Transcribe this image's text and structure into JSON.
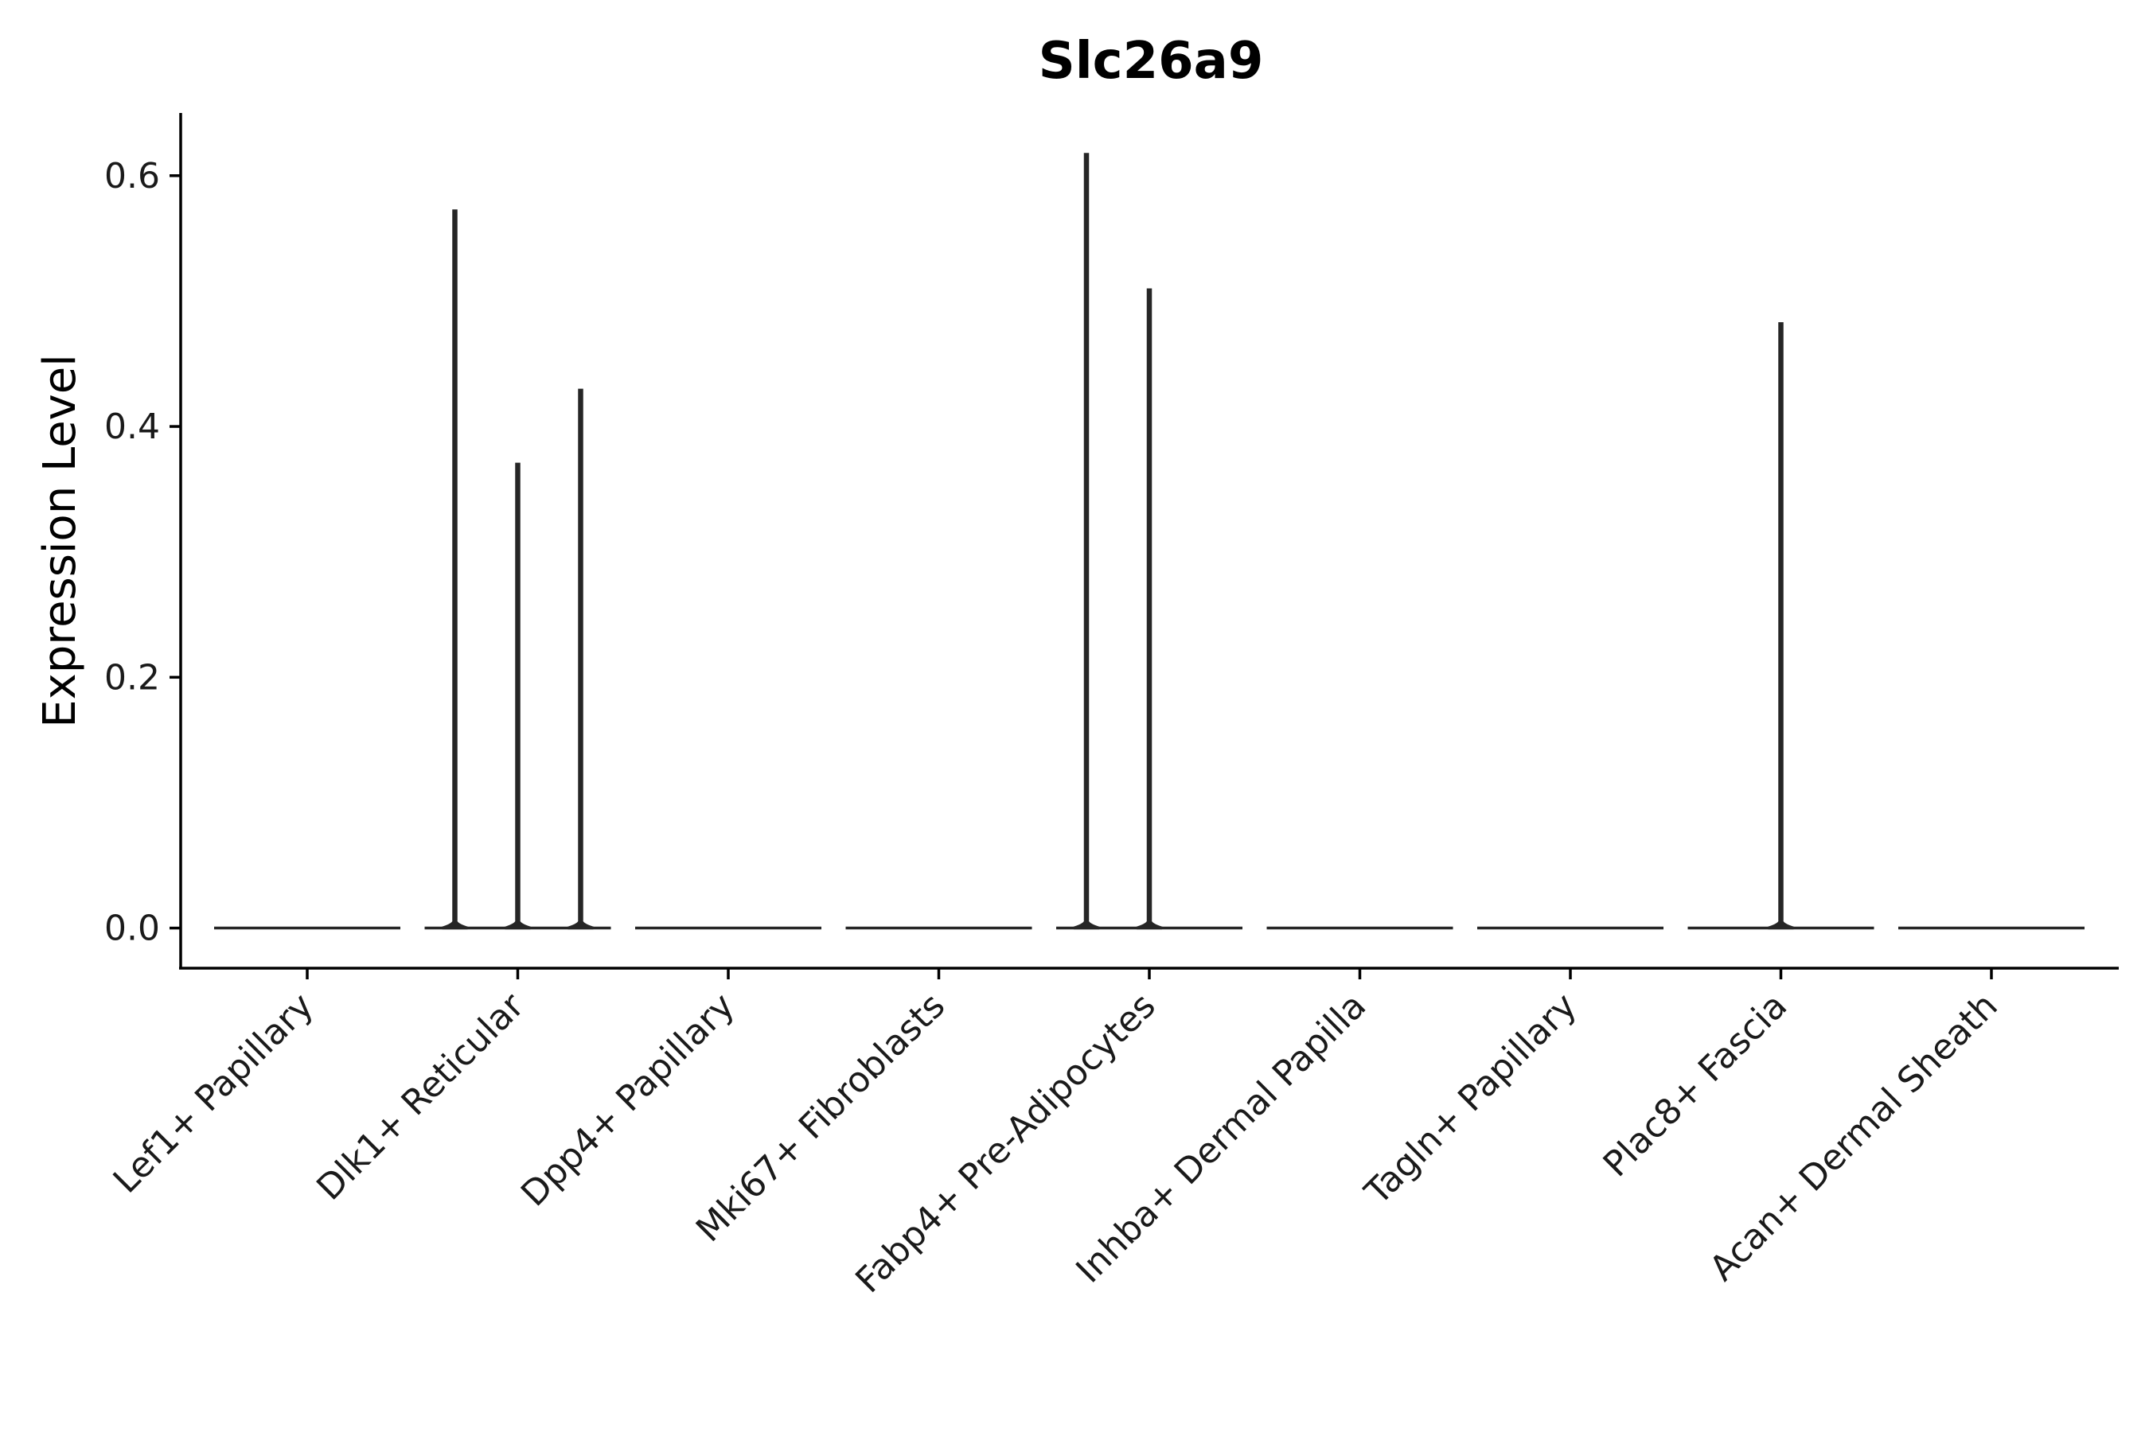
{
  "chart_data": {
    "type": "violin",
    "title": "Slc26a9",
    "xlabel": "",
    "ylabel": "Expression Level",
    "ylim": [
      -0.032,
      0.65
    ],
    "yticks": [
      0.0,
      0.2,
      0.4,
      0.6
    ],
    "ytick_labels": [
      "0.0",
      "0.2",
      "0.4",
      "0.6"
    ],
    "grid": false,
    "legend": "none",
    "color": "#262626",
    "categories": [
      "Lef1+ Papillary",
      "Dlk1+ Reticular",
      "Dpp4+ Papillary",
      "Mki67+ Fibroblasts",
      "Fabp4+ Pre-Adipocytes",
      "Inhba+ Dermal Papilla",
      "Tagln+ Papillary",
      "Plac8+ Fascia",
      "Acan+ Dermal Sheath"
    ],
    "groups": [
      {
        "category": "Lef1+ Papillary",
        "min": 0.0,
        "nonzero_values": []
      },
      {
        "category": "Dlk1+ Reticular",
        "min": 0.0,
        "nonzero_values": [
          0.572,
          0.37,
          0.429
        ]
      },
      {
        "category": "Dpp4+ Papillary",
        "min": 0.0,
        "nonzero_values": []
      },
      {
        "category": "Mki67+ Fibroblasts",
        "min": 0.0,
        "nonzero_values": []
      },
      {
        "category": "Fabp4+ Pre-Adipocytes",
        "min": 0.0,
        "nonzero_values": [
          0.617,
          0.509
        ]
      },
      {
        "category": "Inhba+ Dermal Papilla",
        "min": 0.0,
        "nonzero_values": []
      },
      {
        "category": "Tagln+ Papillary",
        "min": 0.0,
        "nonzero_values": []
      },
      {
        "category": "Plac8+ Fascia",
        "min": 0.0,
        "nonzero_values": [
          0.482
        ]
      },
      {
        "category": "Acan+ Dermal Sheath",
        "min": 0.0,
        "nonzero_values": []
      }
    ]
  }
}
